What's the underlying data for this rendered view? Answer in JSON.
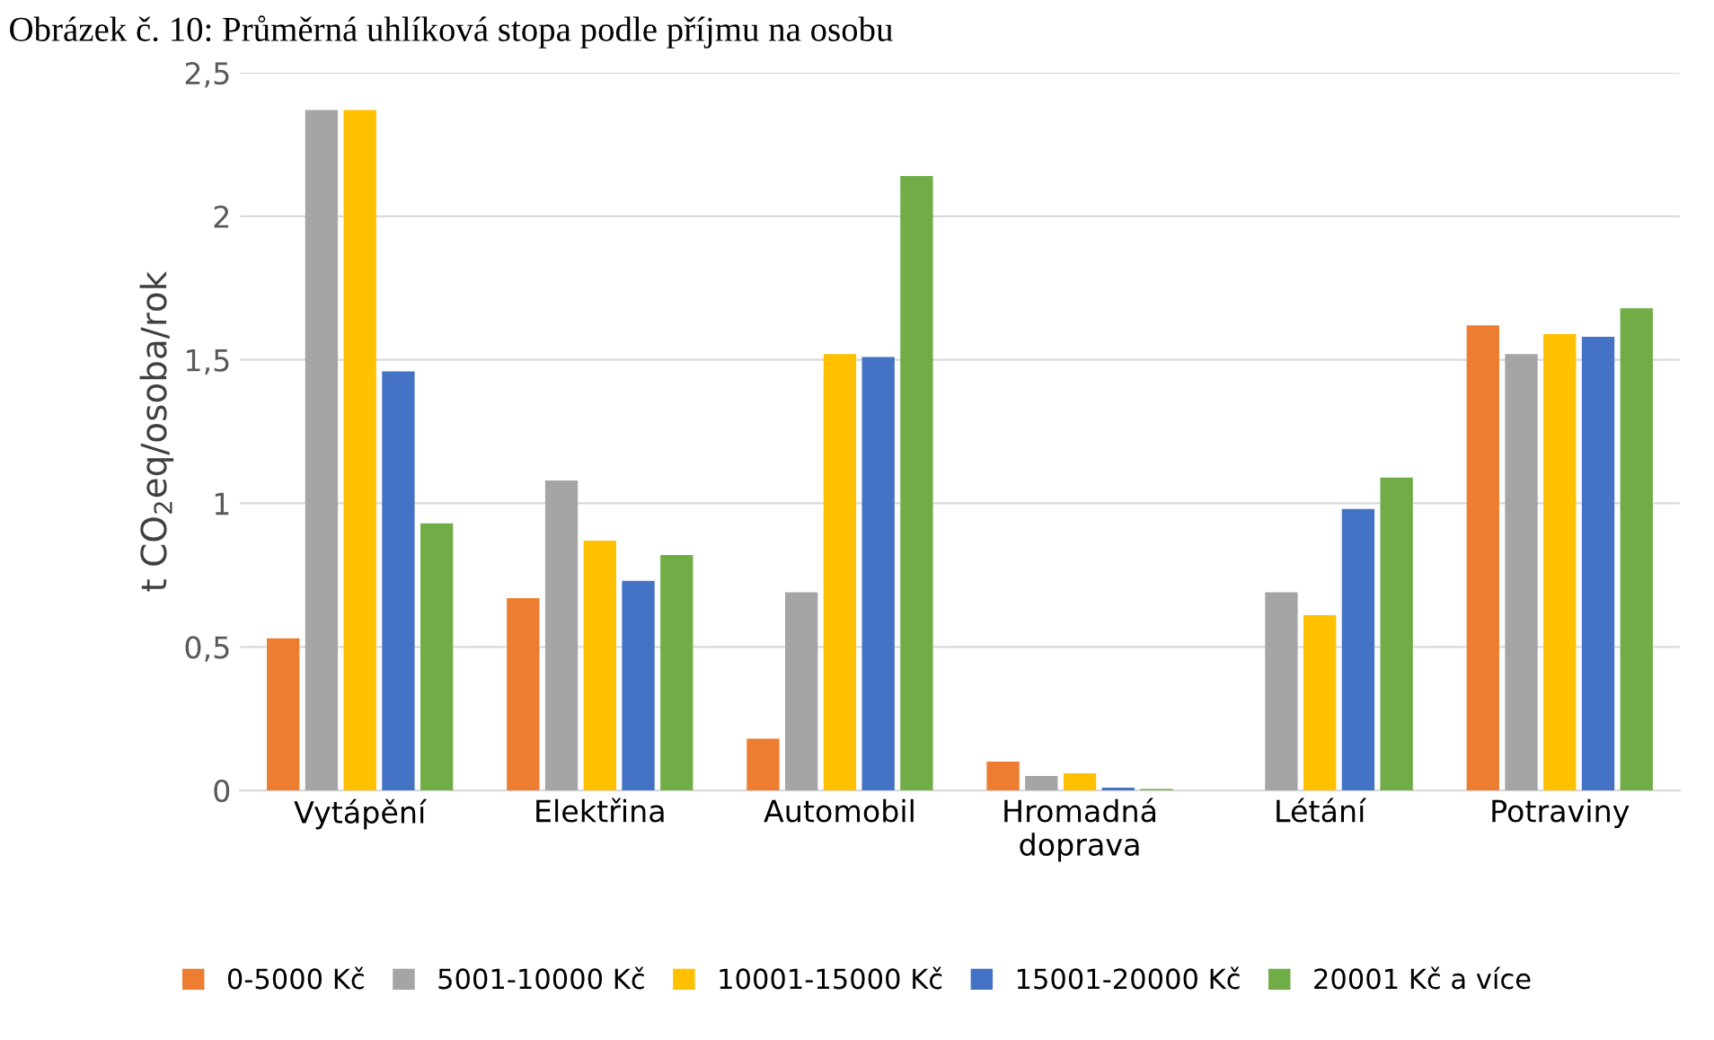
{
  "chart_data": {
    "type": "bar",
    "title": "Obrázek č. 10: Průměrná uhlíková stopa podle příjmu na osobu",
    "ylabel": "t CO$_{2}$eq/osoba/rok",
    "categories": [
      "Vytápění",
      "Elektřina",
      "Automobil",
      "Hromadná\ndoprava",
      "Létání",
      "Potraviny"
    ],
    "series": [
      {
        "name": "0-5000 Kč",
        "color": "#ed7d31",
        "values": [
          0.53,
          0.67,
          0.18,
          0.1,
          0,
          1.62
        ]
      },
      {
        "name": "5001-10000 Kč",
        "color": "#a5a5a5",
        "values": [
          2.37,
          1.08,
          0.69,
          0.05,
          0.69,
          1.52
        ]
      },
      {
        "name": "10001-15000 Kč",
        "color": "#ffc000",
        "values": [
          2.37,
          0.87,
          1.52,
          0.06,
          0.61,
          1.59
        ]
      },
      {
        "name": "15001-20000 Kč",
        "color": "#4472c4",
        "values": [
          1.46,
          0.73,
          1.51,
          0.01,
          0.98,
          1.58
        ]
      },
      {
        "name": "20001 Kč a více",
        "color": "#70ad47",
        "values": [
          0.93,
          0.82,
          2.14,
          0.005,
          1.09,
          1.68
        ]
      }
    ],
    "ylim": [
      0,
      2.5
    ],
    "yticks": [
      0,
      {
        "value": 0.5,
        "label": "0,5"
      },
      1,
      {
        "value": 1.5,
        "label": "1,5"
      },
      2,
      {
        "value": 2.5,
        "label": "2,5"
      }
    ],
    "grid": "y",
    "legend": "bottom"
  }
}
